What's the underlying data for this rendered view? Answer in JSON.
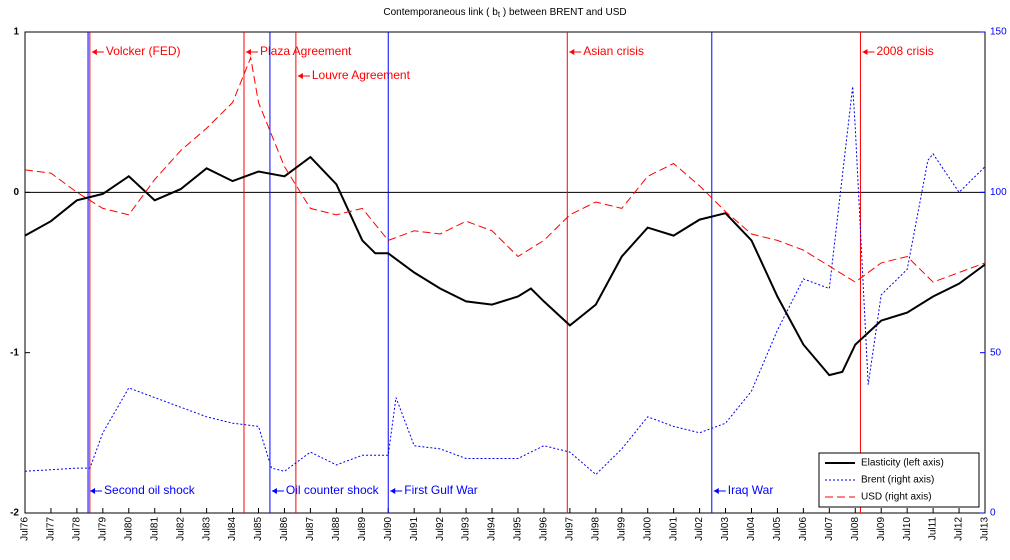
{
  "chart_data": {
    "type": "line",
    "title": [
      "Contemporaneous link ( b",
      "t",
      " ) between BRENT and USD"
    ],
    "xlim": [
      1976.5,
      2013.5
    ],
    "xticks": [
      {
        "value": 1976.5,
        "label": "Jul76"
      },
      {
        "value": 1977.5,
        "label": "Jul77"
      },
      {
        "value": 1978.5,
        "label": "Jul78"
      },
      {
        "value": 1979.5,
        "label": "Jul79"
      },
      {
        "value": 1980.5,
        "label": "Jul80"
      },
      {
        "value": 1981.5,
        "label": "Jul81"
      },
      {
        "value": 1982.5,
        "label": "Jul82"
      },
      {
        "value": 1983.5,
        "label": "Jul83"
      },
      {
        "value": 1984.5,
        "label": "Jul84"
      },
      {
        "value": 1985.5,
        "label": "Jul85"
      },
      {
        "value": 1986.5,
        "label": "Jul86"
      },
      {
        "value": 1987.5,
        "label": "Jul87"
      },
      {
        "value": 1988.5,
        "label": "Jul88"
      },
      {
        "value": 1989.5,
        "label": "Jul89"
      },
      {
        "value": 1990.5,
        "label": "Jul90"
      },
      {
        "value": 1991.5,
        "label": "Jul91"
      },
      {
        "value": 1992.5,
        "label": "Jul92"
      },
      {
        "value": 1993.5,
        "label": "Jul93"
      },
      {
        "value": 1994.5,
        "label": "Jul94"
      },
      {
        "value": 1995.5,
        "label": "Jul95"
      },
      {
        "value": 1996.5,
        "label": "Jul96"
      },
      {
        "value": 1997.5,
        "label": "Jul97"
      },
      {
        "value": 1998.5,
        "label": "Jul98"
      },
      {
        "value": 1999.5,
        "label": "Jul99"
      },
      {
        "value": 2000.5,
        "label": "Jul00"
      },
      {
        "value": 2001.5,
        "label": "Jul01"
      },
      {
        "value": 2002.5,
        "label": "Jul02"
      },
      {
        "value": 2003.5,
        "label": "Jul03"
      },
      {
        "value": 2004.5,
        "label": "Jul04"
      },
      {
        "value": 2005.5,
        "label": "Jul05"
      },
      {
        "value": 2006.5,
        "label": "Jul06"
      },
      {
        "value": 2007.5,
        "label": "Jul07"
      },
      {
        "value": 2008.5,
        "label": "Jul08"
      },
      {
        "value": 2009.5,
        "label": "Jul09"
      },
      {
        "value": 2010.5,
        "label": "Jul10"
      },
      {
        "value": 2011.5,
        "label": "Jul11"
      },
      {
        "value": 2012.5,
        "label": "Jul12"
      },
      {
        "value": 2013.5,
        "label": "Jul13"
      }
    ],
    "ylim": [
      -2,
      1
    ],
    "yticks": [
      -2,
      -1,
      0,
      1
    ],
    "y2lim": [
      0,
      150
    ],
    "y2ticks": [
      0,
      50,
      100,
      150
    ],
    "y2color": "#0000ff",
    "reference_line": 0,
    "legend": "lower right",
    "series": [
      {
        "name": "Elasticity (left axis)",
        "color": "#000000",
        "style": "solid",
        "x": [
          1976.5,
          1977.5,
          1978.5,
          1979.5,
          1980.5,
          1981.5,
          1982.5,
          1983.5,
          1984.5,
          1985.5,
          1986.5,
          1987.5,
          1988.5,
          1989.5,
          1990.0,
          1990.5,
          1991.5,
          1992.5,
          1993.5,
          1994.5,
          1995.5,
          1996.0,
          1996.5,
          1997.5,
          1998.5,
          1999.5,
          2000.5,
          2001.5,
          2002.5,
          2003.5,
          2004.5,
          2005.5,
          2006.5,
          2007.5,
          2008.0,
          2008.5,
          2009.5,
          2010.5,
          2011.5,
          2012.5,
          2013.5
        ],
        "values": [
          -0.27,
          -0.18,
          -0.05,
          -0.01,
          0.1,
          -0.05,
          0.02,
          0.15,
          0.07,
          0.13,
          0.1,
          0.22,
          0.05,
          -0.3,
          -0.38,
          -0.38,
          -0.5,
          -0.6,
          -0.68,
          -0.7,
          -0.65,
          -0.6,
          -0.68,
          -0.83,
          -0.7,
          -0.4,
          -0.22,
          -0.27,
          -0.17,
          -0.13,
          -0.3,
          -0.65,
          -0.95,
          -1.14,
          -1.12,
          -0.95,
          -0.8,
          -0.75,
          -0.65,
          -0.57,
          -0.45
        ]
      },
      {
        "name": "Brent (right axis)",
        "color": "#0000ff",
        "style": "dotted",
        "axis": "y2",
        "x": [
          1976.5,
          1978.5,
          1979.0,
          1979.5,
          1980.5,
          1981.5,
          1982.5,
          1983.5,
          1984.5,
          1985.5,
          1986.0,
          1986.5,
          1987.5,
          1988.5,
          1989.5,
          1990.5,
          1990.8,
          1991.5,
          1992.5,
          1993.5,
          1994.5,
          1995.5,
          1996.5,
          1997.5,
          1998.5,
          1999.5,
          2000.5,
          2001.5,
          2002.5,
          2003.5,
          2004.5,
          2005.5,
          2006.5,
          2007.5,
          2008.4,
          2008.5,
          2009.0,
          2009.5,
          2010.5,
          2011.3,
          2011.5,
          2012.5,
          2013.5
        ],
        "values": [
          13,
          14,
          14,
          25,
          39,
          36,
          33,
          30,
          28,
          27,
          14,
          13,
          19,
          15,
          18,
          18,
          36,
          21,
          20,
          17,
          17,
          17,
          21,
          19,
          12,
          20,
          30,
          27,
          25,
          28,
          38,
          57,
          73,
          70,
          133,
          120,
          40,
          68,
          76,
          110,
          112,
          100,
          108
        ]
      },
      {
        "name": "USD (right axis)",
        "color": "#ff0000",
        "style": "dashed",
        "axis": "y2",
        "x": [
          1976.5,
          1977.5,
          1978.5,
          1979.5,
          1980.5,
          1981.5,
          1982.5,
          1983.5,
          1984.5,
          1985.2,
          1985.5,
          1986.5,
          1987.5,
          1988.5,
          1989.5,
          1990.5,
          1991.5,
          1992.5,
          1993.5,
          1994.5,
          1995.5,
          1996.5,
          1997.5,
          1998.5,
          1999.5,
          2000.5,
          2001.5,
          2002.5,
          2003.5,
          2004.5,
          2005.5,
          2006.5,
          2007.5,
          2008.5,
          2009.5,
          2010.5,
          2011.5,
          2012.5,
          2013.5
        ],
        "values": [
          107,
          106,
          100,
          95,
          93,
          104,
          113,
          120,
          128,
          142,
          128,
          108,
          95,
          93,
          95,
          85,
          88,
          87,
          91,
          88,
          80,
          85,
          93,
          97,
          95,
          105,
          109,
          102,
          94,
          87,
          85,
          82,
          77,
          72,
          78,
          80,
          72,
          75,
          78
        ]
      }
    ],
    "events": [
      {
        "x": 1979.0,
        "label": "Volcker (FED)",
        "color": "#ff0000",
        "position": "top"
      },
      {
        "x": 1978.93,
        "label": "Second oil shock",
        "color": "#0000ff",
        "position": "bottom"
      },
      {
        "x": 1984.94,
        "label": "Plaza Agreement",
        "color": "#ff0000",
        "position": "top"
      },
      {
        "x": 1985.94,
        "label": "Oil counter shock",
        "color": "#0000ff",
        "position": "bottom"
      },
      {
        "x": 1986.94,
        "label": "Louvre Agreement",
        "color": "#ff0000",
        "position": "top"
      },
      {
        "x": 1990.5,
        "label": "First Gulf War",
        "color": "#0000ff",
        "position": "bottom"
      },
      {
        "x": 1997.4,
        "label": "Asian crisis",
        "color": "#ff0000",
        "position": "top"
      },
      {
        "x": 2002.97,
        "label": "Iraq War",
        "color": "#0000ff",
        "position": "bottom"
      },
      {
        "x": 2008.7,
        "label": "2008 crisis",
        "color": "#ff0000",
        "position": "top"
      }
    ]
  }
}
